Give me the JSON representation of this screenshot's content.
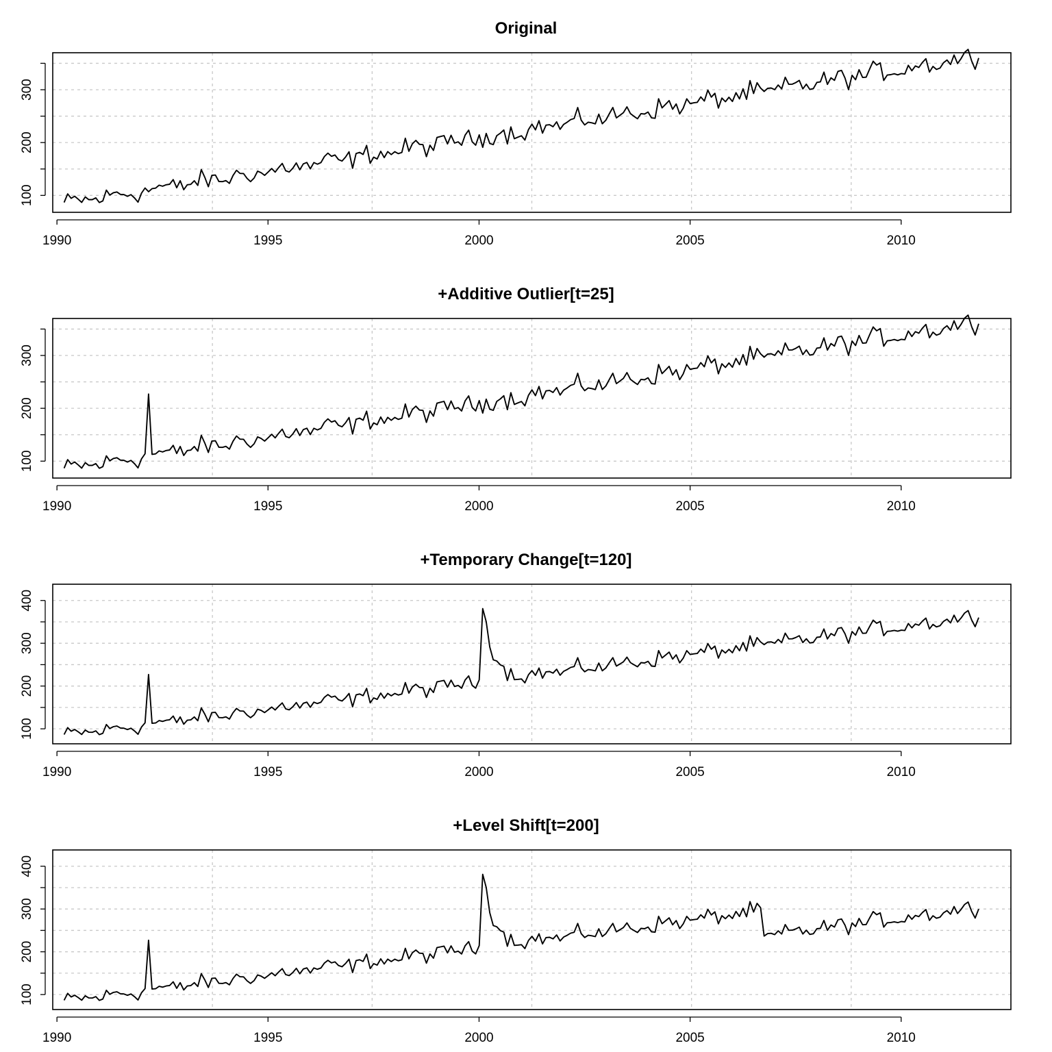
{
  "chart_data": [
    {
      "type": "line",
      "title": "Original",
      "xlabel": "",
      "ylabel": "",
      "xlim": [
        1989.9,
        2012.6
      ],
      "ylim": [
        68,
        370
      ],
      "xticks": [
        "1990",
        "1995",
        "2000",
        "2005",
        "2010"
      ],
      "yticks": [
        "100",
        "200",
        "300"
      ],
      "grid": true,
      "series": [
        {
          "start": 1990.17,
          "frequency": 12,
          "trend": {
            "a": 85,
            "b": 12.47,
            "c": 0.019
          },
          "outliers": []
        }
      ]
    },
    {
      "type": "line",
      "title": "+Additive Outlier[t=25]",
      "xlabel": "",
      "ylabel": "",
      "xlim": [
        1989.9,
        2012.6
      ],
      "ylim": [
        68,
        370
      ],
      "xticks": [
        "1990",
        "1995",
        "2000",
        "2005",
        "2010"
      ],
      "yticks": [
        "100",
        "200",
        "300"
      ],
      "grid": true,
      "series": [
        {
          "start": 1990.17,
          "frequency": 12,
          "trend": {
            "a": 85,
            "b": 12.47,
            "c": 0.019
          },
          "outliers": [
            {
              "kind": "additive",
              "t": 25,
              "size": 120
            }
          ]
        }
      ]
    },
    {
      "type": "line",
      "title": "+Temporary Change[t=120]",
      "xlabel": "",
      "ylabel": "",
      "xlim": [
        1989.9,
        2012.6
      ],
      "ylim": [
        65,
        438
      ],
      "xticks": [
        "1990",
        "1995",
        "2000",
        "2005",
        "2010"
      ],
      "yticks": [
        "100",
        "200",
        "300",
        "400"
      ],
      "grid": true,
      "series": [
        {
          "start": 1990.17,
          "frequency": 12,
          "trend": {
            "a": 85,
            "b": 12.47,
            "c": 0.019
          },
          "outliers": [
            {
              "kind": "additive",
              "t": 25,
              "size": 120
            },
            {
              "kind": "temporary",
              "t": 120,
              "size": 190,
              "decay": 0.7
            }
          ]
        }
      ]
    },
    {
      "type": "line",
      "title": "+Level Shift[t=200]",
      "xlabel": "",
      "ylabel": "",
      "xlim": [
        1989.9,
        2012.6
      ],
      "ylim": [
        65,
        438
      ],
      "xticks": [
        "1990",
        "1995",
        "2000",
        "2005",
        "2010"
      ],
      "yticks": [
        "100",
        "200",
        "300",
        "400"
      ],
      "grid": true,
      "series": [
        {
          "start": 1990.17,
          "frequency": 12,
          "trend": {
            "a": 85,
            "b": 12.47,
            "c": 0.019
          },
          "outliers": [
            {
              "kind": "additive",
              "t": 25,
              "size": 120
            },
            {
              "kind": "temporary",
              "t": 120,
              "size": 190,
              "decay": 0.7
            },
            {
              "kind": "level",
              "t": 200,
              "size": -60
            }
          ]
        }
      ]
    }
  ]
}
